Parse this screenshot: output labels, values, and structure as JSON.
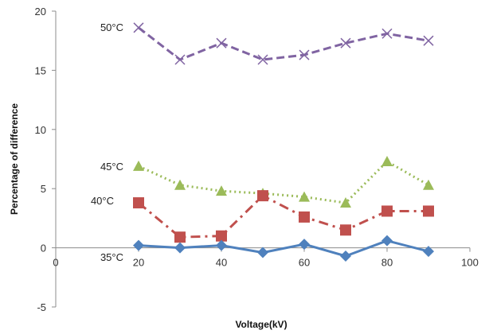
{
  "chart_data": {
    "type": "line",
    "xlabel": "Voltage(kV)",
    "ylabel": "Percentage of difference",
    "xlim": [
      0,
      100
    ],
    "ylim": [
      -5,
      20
    ],
    "x_ticks": [
      0,
      20,
      40,
      60,
      80,
      100
    ],
    "y_ticks": [
      -5,
      0,
      5,
      10,
      15,
      20
    ],
    "grid": false,
    "x": [
      20,
      30,
      40,
      50,
      60,
      70,
      80,
      90
    ],
    "series": [
      {
        "name": "50°C",
        "marker": "x",
        "line": "dashed",
        "color": "#8064A2",
        "values": [
          18.6,
          15.9,
          17.3,
          15.9,
          16.3,
          17.3,
          18.1,
          17.5
        ]
      },
      {
        "name": "45°C",
        "marker": "triangle",
        "line": "dotted",
        "color": "#9BBB59",
        "values": [
          6.9,
          5.3,
          4.8,
          4.6,
          4.3,
          3.8,
          7.3,
          5.3
        ]
      },
      {
        "name": "40°C",
        "marker": "square",
        "line": "dashdot",
        "color": "#C0504D",
        "values": [
          3.8,
          0.9,
          1.0,
          4.4,
          2.6,
          1.5,
          3.1,
          3.1
        ]
      },
      {
        "name": "35°C",
        "marker": "diamond",
        "line": "solid",
        "color": "#4F81BD",
        "values": [
          0.2,
          0.0,
          0.2,
          -0.4,
          0.3,
          -0.7,
          0.6,
          -0.3
        ]
      }
    ]
  }
}
